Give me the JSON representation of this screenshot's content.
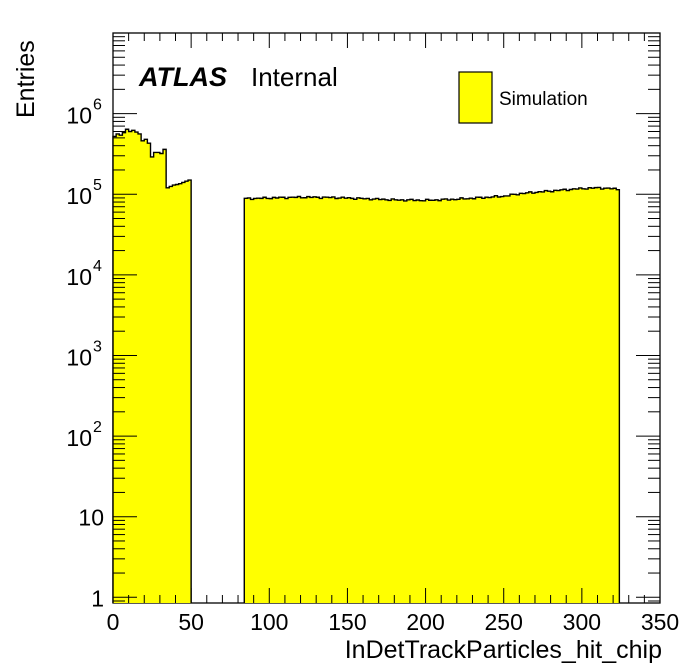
{
  "chart_data": {
    "type": "histogram",
    "xlabel": "InDetTrackParticles_hit_chip",
    "ylabel": "Entries",
    "xlim": [
      0,
      350
    ],
    "ylim": [
      0.85,
      10000000
    ],
    "yscale": "log",
    "grid": false,
    "bin_width": 2,
    "x_ticks": [
      {
        "value": 0,
        "label": "0"
      },
      {
        "value": 50,
        "label": "50"
      },
      {
        "value": 100,
        "label": "100"
      },
      {
        "value": 150,
        "label": "150"
      },
      {
        "value": 200,
        "label": "200"
      },
      {
        "value": 250,
        "label": "250"
      },
      {
        "value": 300,
        "label": "300"
      },
      {
        "value": 350,
        "label": "350"
      }
    ],
    "y_ticks": [
      {
        "value": 1,
        "label": "1",
        "exp": ""
      },
      {
        "value": 10,
        "label": "10",
        "exp": ""
      },
      {
        "value": 100,
        "label": "10",
        "exp": "2"
      },
      {
        "value": 1000,
        "label": "10",
        "exp": "3"
      },
      {
        "value": 10000,
        "label": "10",
        "exp": "4"
      },
      {
        "value": 100000,
        "label": "10",
        "exp": "5"
      },
      {
        "value": 1000000,
        "label": "10",
        "exp": "6"
      }
    ],
    "series": [
      {
        "name": "Simulation",
        "color": "#ffff00",
        "edge_color": "#000000",
        "bins_low": {
          "x": [
            0,
            2,
            4,
            6,
            8,
            10,
            12,
            14,
            16,
            18,
            20,
            22,
            24,
            26,
            28,
            30,
            32,
            34,
            36,
            38,
            40,
            42,
            44,
            46,
            48
          ],
          "values": [
            520000,
            560000,
            540000,
            580000,
            640000,
            600000,
            620000,
            590000,
            560000,
            460000,
            480000,
            430000,
            290000,
            330000,
            330000,
            320000,
            360000,
            120000,
            125000,
            130000,
            132000,
            135000,
            140000,
            145000,
            150000
          ]
        },
        "bins_high": {
          "x_start": 84,
          "x_end": 324,
          "anchors_x": [
            84,
            100,
            120,
            140,
            160,
            180,
            200,
            220,
            240,
            250,
            260,
            280,
            300,
            310,
            324
          ],
          "anchors_y": [
            88000,
            90000,
            92000,
            91000,
            88000,
            85000,
            84000,
            87000,
            92000,
            95000,
            102000,
            110000,
            118000,
            120000,
            115000
          ]
        }
      }
    ],
    "legend_placement": "top-right"
  },
  "annotations": {
    "atlas_label": "ATLAS",
    "atlas_status": "Internal"
  }
}
